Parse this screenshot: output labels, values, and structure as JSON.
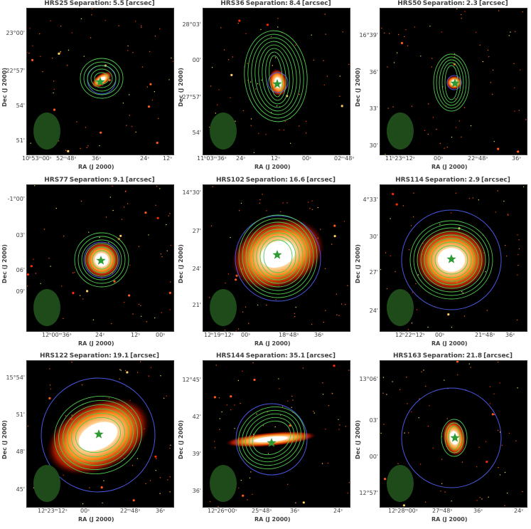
{
  "axes": {
    "xlabel": "RA (J 2000)",
    "ylabel": "Dec (J 2000)",
    "sep_prefix": "Separation:",
    "sep_unit": "[arcsec]"
  },
  "colors": {
    "contour": "#4fc94f",
    "aperture": "#4a57e0",
    "beam": "#1f4a1a",
    "star": "#2e9a36",
    "background": "#000000"
  },
  "icons": {
    "marker": "star-icon",
    "beam": "ellipse-beam-icon"
  },
  "panels": [
    {
      "name": "HRS25",
      "separation": "5.5",
      "yticks": [
        "23°00'",
        "22°57'",
        "54'",
        "51'"
      ],
      "xticks": [
        "10ʰ53ᵐ00ˢ",
        "52ᵐ48ˢ",
        "36ˢ",
        "24ˢ",
        "12ˢ"
      ]
    },
    {
      "name": "HRS36",
      "separation": "8.4",
      "yticks": [
        "28°03'",
        "00'",
        "27°57'",
        "54'"
      ],
      "xticks": [
        "11ʰ03ᵐ36ˢ",
        "24ˢ",
        "12ˢ",
        "00ˢ",
        "02ᵐ48ˢ"
      ]
    },
    {
      "name": "HRS50",
      "separation": "2.3",
      "yticks": [
        "16°39'",
        "36'",
        "33'",
        "30'"
      ],
      "xticks": [
        "11ʰ23ᵐ12ˢ",
        "00ˢ",
        "22ᵐ48ˢ",
        "36ˢ"
      ]
    },
    {
      "name": "HRS77",
      "separation": "9.1",
      "yticks": [
        "-1°00'",
        "03'",
        "06'",
        "09'"
      ],
      "xticks": [
        "12ʰ00ᵐ36ˢ",
        "24ˢ",
        "12ˢ",
        "00ˢ"
      ]
    },
    {
      "name": "HRS102",
      "separation": "16.6",
      "yticks": [
        "14°30'",
        "27'",
        "24'",
        "21'"
      ],
      "xticks": [
        "12ʰ19ᵐ12ˢ",
        "00ˢ",
        "18ᵐ48ˢ",
        "36ˢ"
      ]
    },
    {
      "name": "HRS114",
      "separation": "2.9",
      "yticks": [
        "4°33'",
        "30'",
        "27'",
        "24'"
      ],
      "xticks": [
        "12ʰ22ᵐ12ˢ",
        "00ˢ",
        "21ᵐ48ˢ",
        "36ˢ"
      ]
    },
    {
      "name": "HRS122",
      "separation": "19.1",
      "yticks": [
        "15°54'",
        "51'",
        "48'",
        "45'"
      ],
      "xticks": [
        "12ʰ23ᵐ12ˢ",
        "00ˢ",
        "22ᵐ48ˢ",
        "36ˢ"
      ]
    },
    {
      "name": "HRS144",
      "separation": "35.1",
      "yticks": [
        "12°45'",
        "42'",
        "39'",
        "36'"
      ],
      "xticks": [
        "12ʰ26ᵐ00ˢ",
        "25ᵐ48ˢ",
        "36ˢ",
        "24ˢ"
      ]
    },
    {
      "name": "HRS163",
      "separation": "21.8",
      "yticks": [
        "13°06'",
        "03'",
        "00'",
        "12°57'"
      ],
      "xticks": [
        "12ʰ28ᵐ00ˢ",
        "27ᵐ48ˢ",
        "36ˢ",
        "24ˢ"
      ]
    }
  ]
}
